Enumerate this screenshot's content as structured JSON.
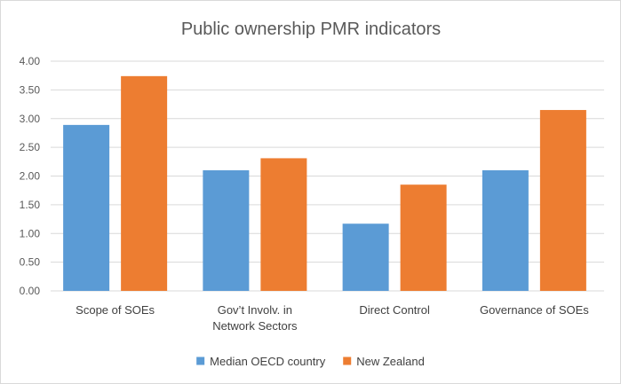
{
  "chart_data": {
    "type": "bar",
    "title": "Public ownership PMR indicators",
    "xlabel": "",
    "ylabel": "",
    "categories": [
      [
        "Scope of SOEs"
      ],
      [
        "Gov’t Involv. in",
        "Network Sectors"
      ],
      [
        "Direct Control"
      ],
      [
        "Governance of SOEs"
      ]
    ],
    "series": [
      {
        "name": "Median OECD country",
        "color": "#5b9bd5",
        "values": [
          2.89,
          2.1,
          1.17,
          2.1
        ]
      },
      {
        "name": "New Zealand",
        "color": "#ed7d31",
        "values": [
          3.74,
          2.31,
          1.85,
          3.15
        ]
      }
    ],
    "ylim": [
      0,
      4
    ],
    "yticks": [
      "0.00",
      "0.50",
      "1.00",
      "1.50",
      "2.00",
      "2.50",
      "3.00",
      "3.50",
      "4.00"
    ],
    "grid": true,
    "gridColor": "#d9d9d9",
    "legend": "bottom"
  }
}
